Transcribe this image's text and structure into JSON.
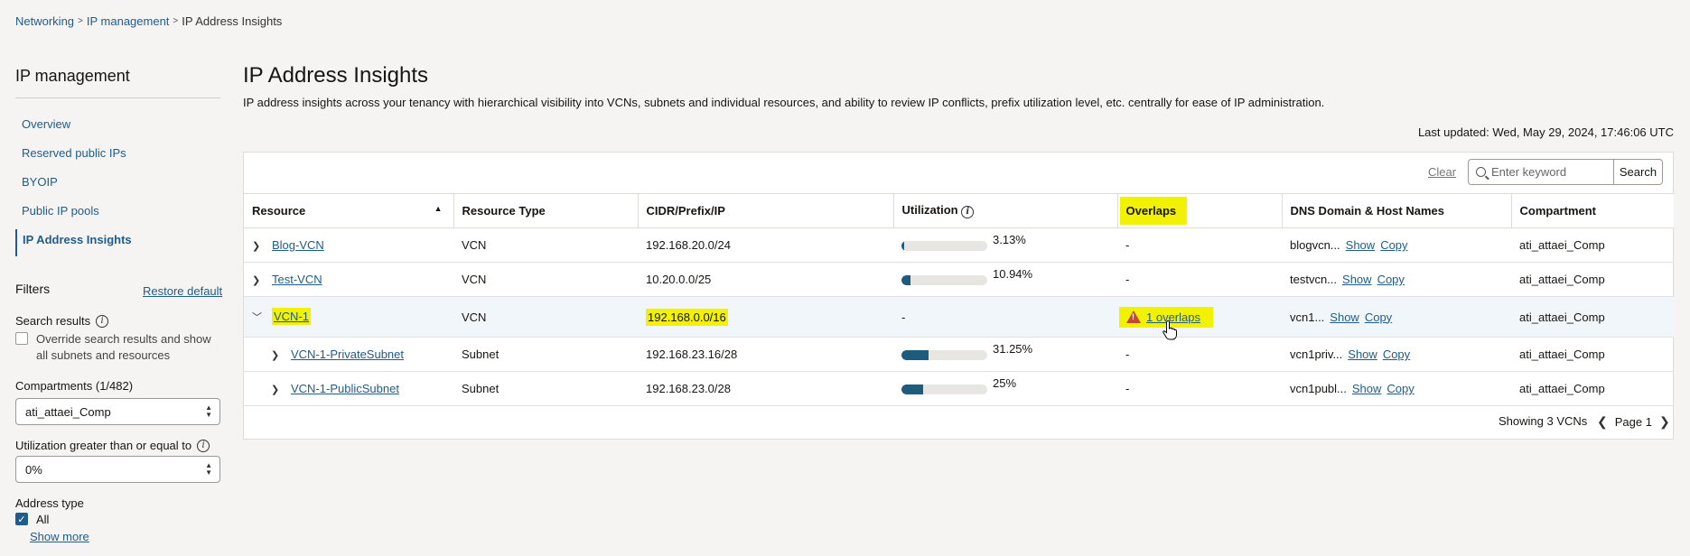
{
  "breadcrumb": [
    "Networking",
    "IP management",
    "IP Address Insights"
  ],
  "nav": {
    "title": "IP management",
    "items": [
      "Overview",
      "Reserved public IPs",
      "BYOIP",
      "Public IP pools",
      "IP Address Insights"
    ]
  },
  "filters": {
    "title": "Filters",
    "restore": "Restore default",
    "search_results_label": "Search results",
    "override_text": "Override search results and show all subnets and resources",
    "compartments_label": "Compartments (1/482)",
    "compartment_value": "ati_attaei_Comp",
    "utilization_label": "Utilization greater than or equal to",
    "utilization_value": "0%",
    "address_type_label": "Address type",
    "address_all": "All",
    "show_more": "Show more"
  },
  "page": {
    "title": "IP Address Insights",
    "description": "IP address insights across your tenancy with hierarchical visibility into VCNs, subnets and individual resources, and ability to review IP conflicts, prefix utilization level, etc. centrally for ease of IP administration.",
    "last_updated": "Last updated: Wed, May 29, 2024, 17:46:06 UTC"
  },
  "search": {
    "clear": "Clear",
    "placeholder": "Enter keyword",
    "button": "Search"
  },
  "table": {
    "columns": [
      "Resource",
      "Resource Type",
      "CIDR/Prefix/IP",
      "Utilization",
      "Overlaps",
      "DNS Domain & Host Names",
      "Compartment"
    ],
    "rows": [
      {
        "resource": "Blog-VCN",
        "type": "VCN",
        "cidr": "192.168.20.0/24",
        "util": "3.13%",
        "util_frac": 0.0313,
        "overlaps": "-",
        "dns": "blogvcn...",
        "compartment": "ati_attaei_Comp"
      },
      {
        "resource": "Test-VCN",
        "type": "VCN",
        "cidr": "10.20.0.0/25",
        "util": "10.94%",
        "util_frac": 0.1094,
        "overlaps": "-",
        "dns": "testvcn...",
        "compartment": "ati_attaei_Comp"
      },
      {
        "resource": "VCN-1",
        "type": "VCN",
        "cidr": "192.168.0.0/16",
        "util": "-",
        "overlaps": "1 overlaps",
        "dns": "vcn1...",
        "compartment": "ati_attaei_Comp"
      },
      {
        "resource": "VCN-1-PrivateSubnet",
        "type": "Subnet",
        "cidr": "192.168.23.16/28",
        "util": "31.25%",
        "util_frac": 0.3125,
        "overlaps": "-",
        "dns": "vcn1priv...",
        "compartment": "ati_attaei_Comp"
      },
      {
        "resource": "VCN-1-PublicSubnet",
        "type": "Subnet",
        "cidr": "192.168.23.0/28",
        "util": "25%",
        "util_frac": 0.25,
        "overlaps": "-",
        "dns": "vcn1publ...",
        "compartment": "ati_attaei_Comp"
      }
    ],
    "show": "Show",
    "copy": "Copy"
  },
  "footer": {
    "count": "Showing 3 VCNs",
    "page": "Page 1"
  },
  "icons": {
    "expand": "chevron-right-icon",
    "collapse": "chevron-down-icon",
    "warning": "warning-icon",
    "info": "info-icon",
    "search": "search-icon",
    "cursor": "hand-pointer-icon"
  },
  "colors": {
    "link": "#1f5c8a",
    "highlight": "#f2f200",
    "bar": "#1e5c7e",
    "warning": "#c74634"
  }
}
